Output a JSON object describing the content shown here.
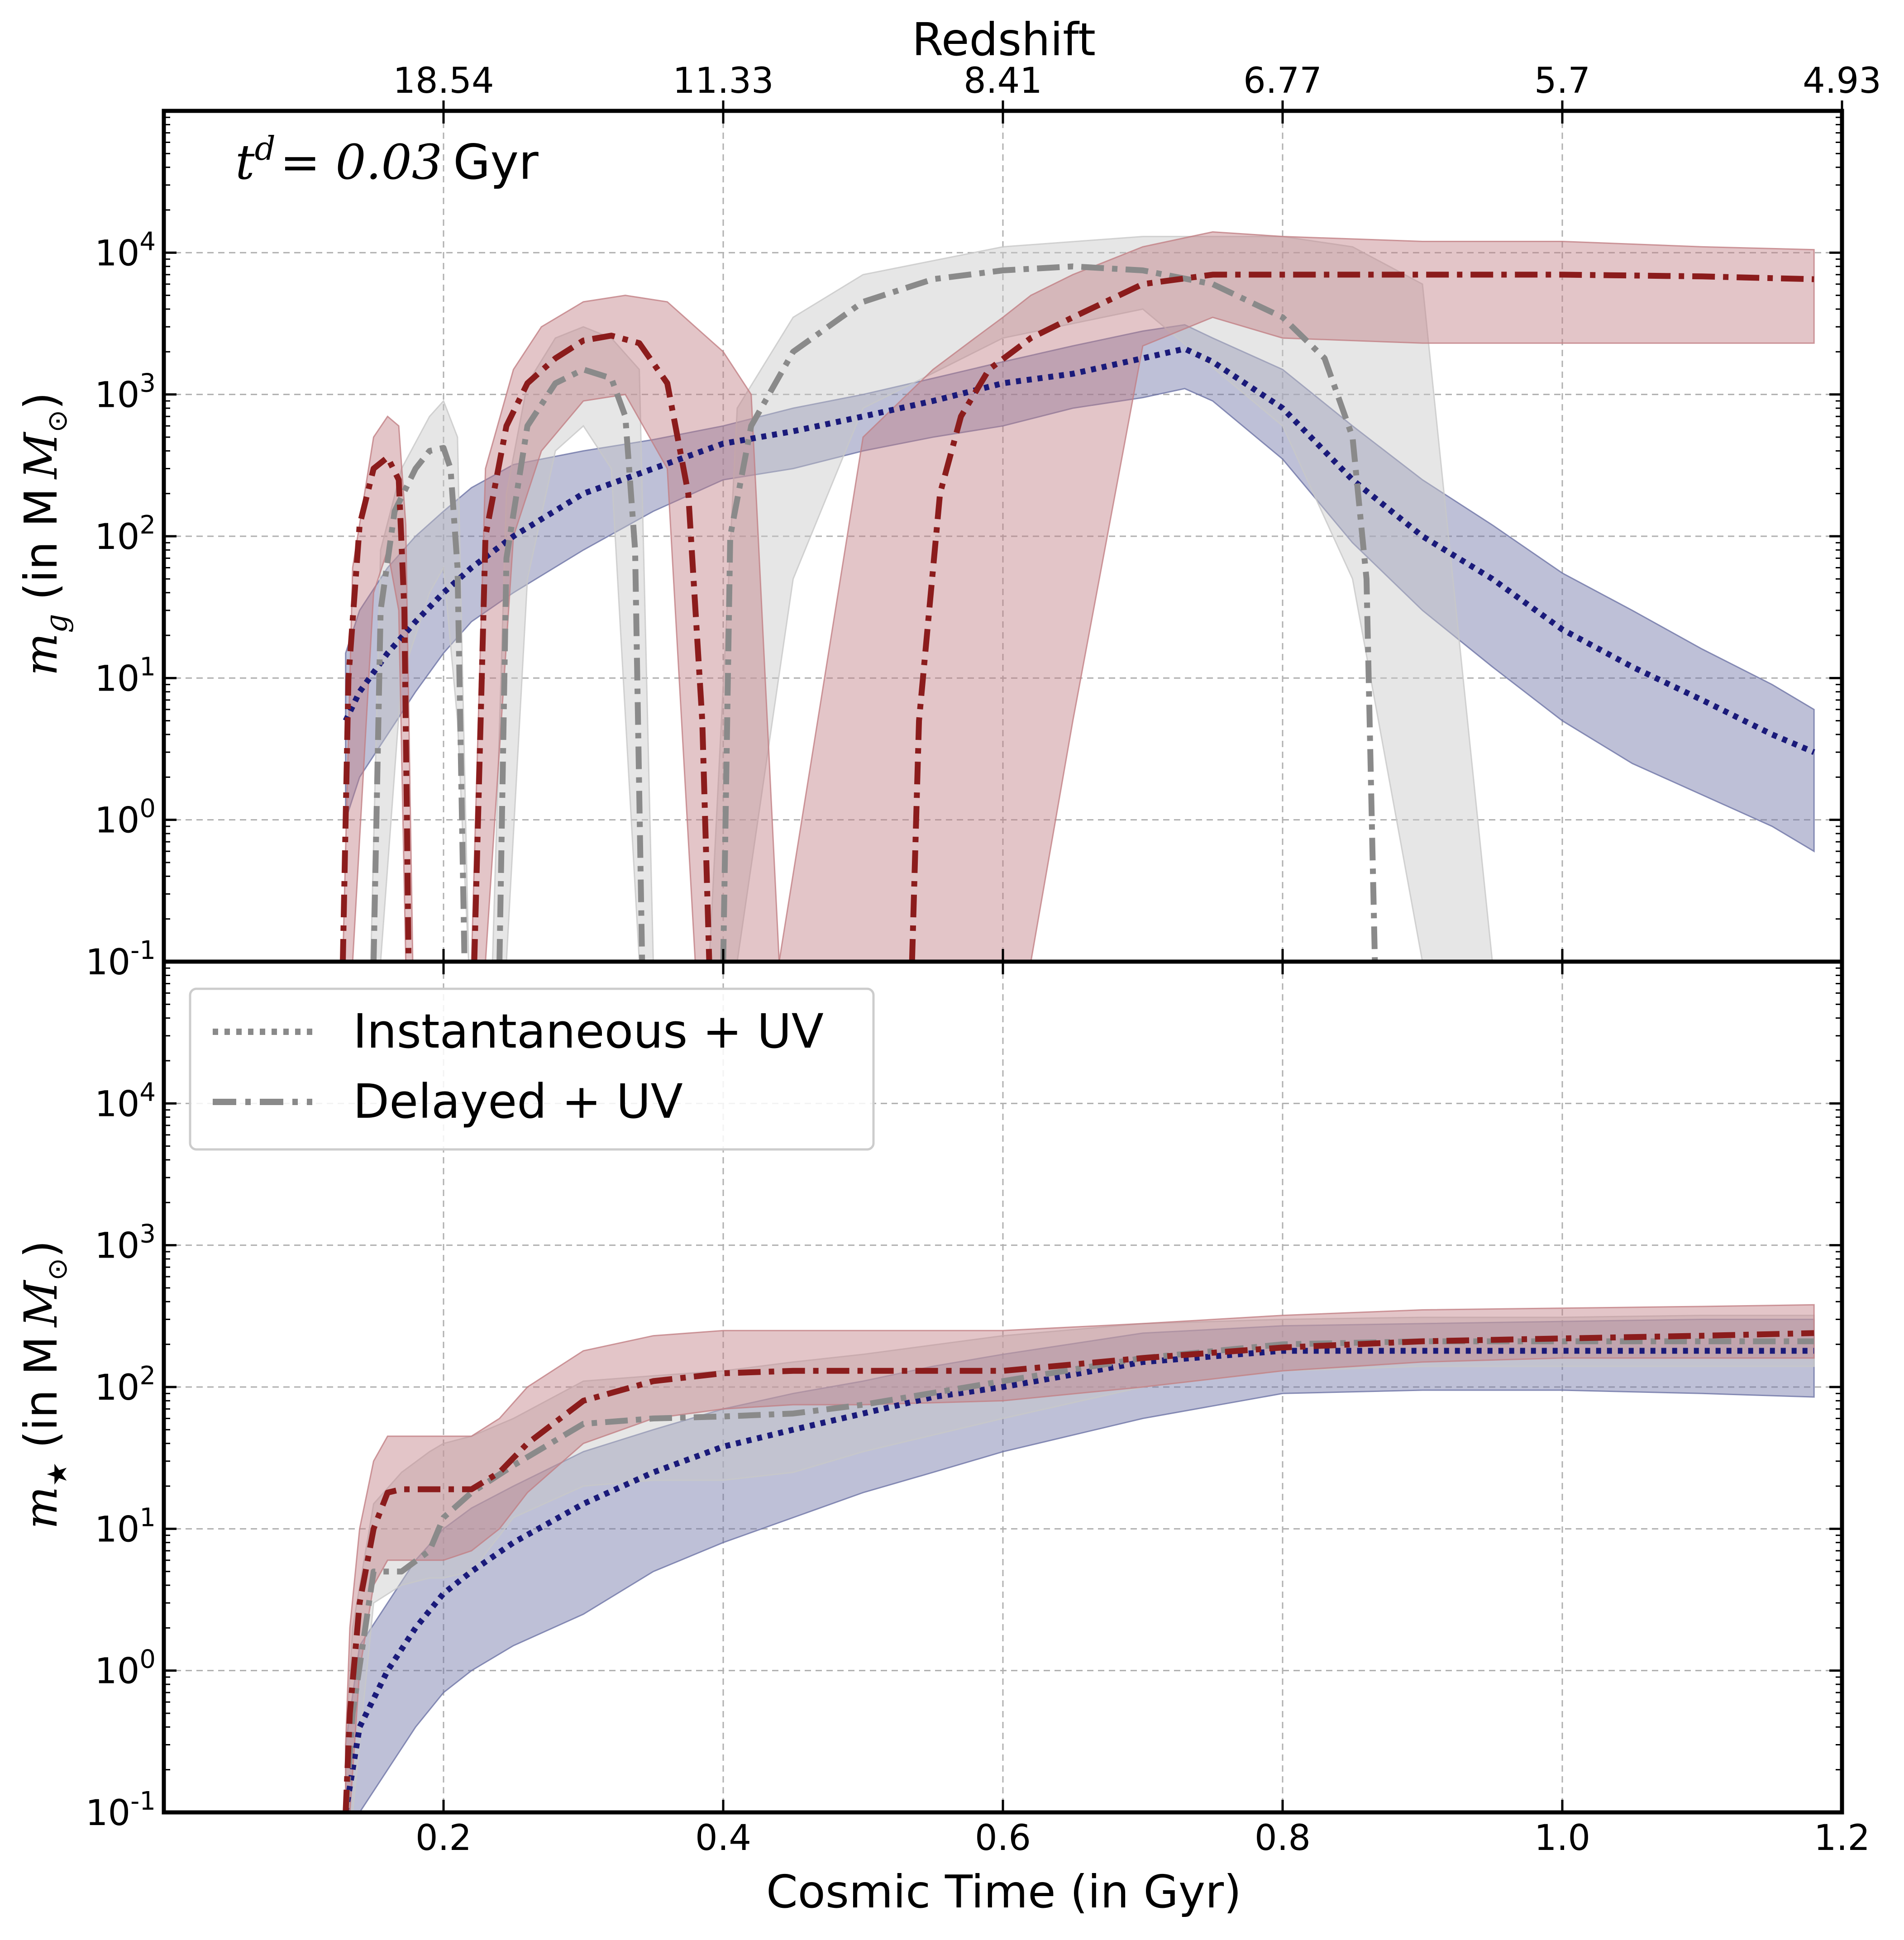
{
  "colors": {
    "instantaneous": "#1a1a7a",
    "instantaneous_band": "#6e74a6",
    "delayed": "#8a8a8a",
    "delayed_band": "#c8c8c8",
    "delayed_nouv": "#8b1c1c",
    "delayed_nouv_band": "#c27f85",
    "grid": "#b0b0b0"
  },
  "top_axis": {
    "title": "Redshift",
    "tick_labels": [
      "18.54",
      "11.33",
      "8.41",
      "6.77",
      "5.7",
      "4.93"
    ],
    "tick_positions_gyr": [
      0.2,
      0.4,
      0.6,
      0.8,
      1.0,
      1.2
    ]
  },
  "x_axis": {
    "title": "Cosmic Time (in Gyr)",
    "ticks": [
      0.2,
      0.4,
      0.6,
      0.8,
      1.0,
      1.2
    ],
    "tick_labels": [
      "0.2",
      "0.4",
      "0.6",
      "0.8",
      "1.0",
      "1.2"
    ]
  },
  "annotation": {
    "math": "t",
    "superscript": "d",
    "value": "= 0.03",
    "unit": "Gyr"
  },
  "legend": {
    "placement": "upper-left of lower panel",
    "entries": [
      {
        "label": "Instantaneous + UV",
        "style": "dotted"
      },
      {
        "label": "Delayed + UV",
        "style": "dashdot"
      }
    ]
  },
  "chart_data": [
    {
      "type": "line",
      "panel": "top",
      "ylabel_math": "m",
      "ylabel_sub": "g",
      "ylabel_text": "(in M",
      "ylabel_sun": "⊙",
      "ylabel_close": ")",
      "xlim": [
        0.0,
        1.2
      ],
      "ylim_log10": [
        -1,
        5
      ],
      "yscale": "log",
      "grid": true,
      "ytick_exponents": [
        -1,
        0,
        1,
        2,
        3,
        4
      ],
      "ytick_base": "10",
      "series": [
        {
          "name": "Instantaneous + UV",
          "key": "instantaneous",
          "style": "dotted",
          "x": [
            0.13,
            0.14,
            0.16,
            0.18,
            0.2,
            0.22,
            0.25,
            0.3,
            0.35,
            0.4,
            0.45,
            0.5,
            0.55,
            0.6,
            0.65,
            0.7,
            0.73,
            0.75,
            0.8,
            0.85,
            0.9,
            0.95,
            1.0,
            1.05,
            1.1,
            1.15,
            1.18
          ],
          "y": [
            5,
            8,
            15,
            25,
            40,
            60,
            100,
            200,
            300,
            450,
            550,
            700,
            900,
            1200,
            1400,
            1800,
            2100,
            1700,
            800,
            250,
            100,
            50,
            22,
            12,
            7,
            4,
            3
          ],
          "band_upper": [
            15,
            30,
            60,
            100,
            150,
            220,
            320,
            400,
            480,
            600,
            800,
            1000,
            1300,
            1700,
            2200,
            2800,
            3100,
            2500,
            1500,
            600,
            250,
            120,
            55,
            30,
            16,
            9,
            6
          ],
          "band_lower": [
            1,
            2,
            4,
            8,
            15,
            25,
            40,
            80,
            150,
            250,
            300,
            400,
            500,
            600,
            800,
            950,
            1100,
            900,
            350,
            90,
            30,
            12,
            5,
            2.5,
            1.5,
            0.9,
            0.6
          ]
        },
        {
          "name": "Delayed + UV",
          "key": "delayed",
          "style": "dashdot",
          "segments": [
            {
              "x": [
                0.15,
                0.155,
                0.165,
                0.18,
                0.19,
                0.2,
                0.205,
                0.21,
                0.215
              ],
              "y": [
                0.1,
                30,
                150,
                300,
                400,
                420,
                300,
                60,
                0.1
              ]
            },
            {
              "x": [
                0.24,
                0.245,
                0.26,
                0.28,
                0.3,
                0.32,
                0.33,
                0.337,
                0.342
              ],
              "y": [
                0.1,
                70,
                600,
                1200,
                1500,
                1300,
                700,
                80,
                0.1
              ]
            },
            {
              "x": [
                0.4,
                0.405,
                0.42,
                0.45,
                0.5,
                0.55,
                0.6,
                0.65,
                0.7,
                0.75,
                0.8,
                0.83,
                0.85,
                0.86,
                0.866
              ],
              "y": [
                0.1,
                100,
                600,
                2000,
                4500,
                6500,
                7500,
                8000,
                7500,
                6000,
                3500,
                1800,
                500,
                50,
                0.1
              ]
            }
          ],
          "bands": [
            {
              "x": [
                0.148,
                0.155,
                0.17,
                0.19,
                0.2,
                0.21,
                0.218
              ],
              "upper": [
                0.1,
                80,
                300,
                700,
                900,
                500,
                0.1
              ],
              "lower": [
                0.1,
                0.1,
                10,
                40,
                60,
                5,
                0.1
              ]
            },
            {
              "x": [
                0.235,
                0.245,
                0.26,
                0.28,
                0.3,
                0.32,
                0.34,
                0.35
              ],
              "upper": [
                0.1,
                200,
                1200,
                2500,
                3000,
                2500,
                1500,
                0.1
              ],
              "lower": [
                0.1,
                0.1,
                50,
                400,
                600,
                300,
                0.1,
                0.1
              ]
            },
            {
              "x": [
                0.39,
                0.41,
                0.45,
                0.5,
                0.6,
                0.7,
                0.8,
                0.85,
                0.9,
                0.95
              ],
              "upper": [
                0.1,
                800,
                3500,
                7000,
                11000,
                13000,
                13000,
                11000,
                6000,
                0.1
              ],
              "lower": [
                0.1,
                0.1,
                50,
                800,
                2500,
                4000,
                600,
                50,
                0.1,
                0.1
              ]
            }
          ]
        },
        {
          "name": "",
          "key": "delayed_nouv",
          "style": "dashdot",
          "segments": [
            {
              "x": [
                0.128,
                0.132,
                0.14,
                0.15,
                0.16,
                0.168,
                0.172,
                0.175
              ],
              "y": [
                0.1,
                10,
                120,
                300,
                360,
                250,
                30,
                0.1
              ]
            },
            {
              "x": [
                0.222,
                0.23,
                0.245,
                0.26,
                0.28,
                0.3,
                0.32,
                0.34,
                0.36,
                0.375,
                0.385,
                0.39
              ],
              "y": [
                0.1,
                100,
                600,
                1200,
                1800,
                2400,
                2600,
                2300,
                1200,
                200,
                5,
                0.1
              ]
            },
            {
              "x": [
                0.535,
                0.54,
                0.555,
                0.57,
                0.59,
                0.62,
                0.65,
                0.7,
                0.75,
                0.8,
                0.9,
                1.0,
                1.1,
                1.18
              ],
              "y": [
                0.1,
                5,
                200,
                700,
                1500,
                2500,
                3500,
                6000,
                7000,
                7000,
                7000,
                7000,
                6800,
                6500
              ]
            }
          ],
          "bands": [
            {
              "x": [
                0.128,
                0.135,
                0.15,
                0.16,
                0.168,
                0.173,
                0.178
              ],
              "upper": [
                0.1,
                60,
                500,
                700,
                600,
                120,
                0.1
              ],
              "lower": [
                0.1,
                0.1,
                40,
                80,
                30,
                0.1,
                0.1
              ]
            },
            {
              "x": [
                0.22,
                0.23,
                0.25,
                0.27,
                0.3,
                0.33,
                0.36,
                0.38,
                0.4,
                0.42,
                0.44
              ],
              "upper": [
                0.1,
                300,
                1500,
                3000,
                4500,
                5000,
                4500,
                3000,
                2000,
                1000,
                0.1
              ],
              "lower": [
                0.1,
                0.1,
                100,
                400,
                900,
                1000,
                300,
                0.1,
                0.1,
                0.1,
                0.1
              ]
            },
            {
              "x": [
                0.44,
                0.5,
                0.55,
                0.58,
                0.6,
                0.62,
                0.65,
                0.7,
                0.75,
                0.8,
                0.9,
                1.0,
                1.1,
                1.18
              ],
              "upper": [
                0.1,
                500,
                1500,
                2500,
                3500,
                5000,
                7000,
                11000,
                14000,
                13000,
                12000,
                12000,
                11000,
                10500
              ],
              "lower": [
                0.1,
                0.1,
                0.1,
                0.1,
                0.1,
                0.1,
                5,
                2200,
                3500,
                2500,
                2300,
                2300,
                2300,
                2300
              ]
            }
          ]
        }
      ]
    },
    {
      "type": "line",
      "panel": "bottom",
      "ylabel_math": "m",
      "ylabel_sub": "★",
      "ylabel_text": "(in M",
      "ylabel_sun": "⊙",
      "ylabel_close": ")",
      "xlim": [
        0.0,
        1.2
      ],
      "ylim_log10": [
        -1,
        5
      ],
      "yscale": "log",
      "grid": true,
      "ytick_exponents": [
        -1,
        0,
        1,
        2,
        3,
        4
      ],
      "ytick_base": "10",
      "series": [
        {
          "name": "Instantaneous + UV",
          "key": "instantaneous",
          "style": "dotted",
          "x": [
            0.13,
            0.14,
            0.16,
            0.18,
            0.2,
            0.22,
            0.25,
            0.3,
            0.35,
            0.4,
            0.45,
            0.5,
            0.55,
            0.6,
            0.7,
            0.8,
            0.9,
            1.0,
            1.1,
            1.18
          ],
          "y": [
            0.1,
            0.4,
            1,
            2,
            3.5,
            5,
            8,
            15,
            25,
            38,
            50,
            65,
            85,
            100,
            150,
            180,
            180,
            180,
            180,
            180
          ],
          "band_upper": [
            0.3,
            1.5,
            3,
            6,
            10,
            14,
            20,
            35,
            50,
            70,
            90,
            110,
            140,
            170,
            240,
            270,
            280,
            290,
            300,
            300
          ],
          "band_lower": [
            0.05,
            0.08,
            0.2,
            0.4,
            0.7,
            1,
            1.5,
            2.5,
            5,
            8,
            12,
            18,
            25,
            35,
            60,
            90,
            95,
            95,
            90,
            85
          ]
        },
        {
          "name": "Delayed + UV",
          "key": "delayed",
          "style": "dashdot",
          "x": [
            0.13,
            0.135,
            0.15,
            0.17,
            0.19,
            0.2,
            0.22,
            0.25,
            0.3,
            0.35,
            0.4,
            0.45,
            0.5,
            0.6,
            0.7,
            0.8,
            0.9,
            1.0,
            1.1,
            1.18
          ],
          "y": [
            0.1,
            0.5,
            5,
            5,
            7,
            12,
            18,
            28,
            55,
            60,
            62,
            65,
            75,
            110,
            160,
            200,
            210,
            210,
            210,
            210
          ],
          "band_upper": [
            0.3,
            2,
            15,
            25,
            35,
            40,
            45,
            60,
            110,
            120,
            130,
            150,
            170,
            230,
            280,
            300,
            310,
            310,
            320,
            320
          ],
          "band_lower": [
            0.05,
            0.1,
            3,
            4,
            4.5,
            4.5,
            5,
            12,
            20,
            22,
            22,
            25,
            35,
            60,
            100,
            130,
            140,
            140,
            140,
            140
          ]
        },
        {
          "name": "",
          "key": "delayed_nouv",
          "style": "dashdot",
          "x": [
            0.13,
            0.133,
            0.14,
            0.15,
            0.16,
            0.17,
            0.18,
            0.2,
            0.22,
            0.24,
            0.26,
            0.3,
            0.35,
            0.4,
            0.45,
            0.5,
            0.6,
            0.7,
            0.8,
            0.9,
            1.0,
            1.1,
            1.18
          ],
          "y": [
            0.1,
            0.5,
            3,
            10,
            18,
            19,
            19,
            19,
            19,
            25,
            40,
            80,
            110,
            125,
            130,
            130,
            130,
            160,
            190,
            210,
            220,
            230,
            240
          ],
          "band_upper": [
            0.3,
            2,
            10,
            30,
            45,
            45,
            45,
            45,
            45,
            60,
            100,
            180,
            230,
            250,
            250,
            250,
            250,
            280,
            320,
            350,
            360,
            370,
            380
          ],
          "band_lower": [
            0.05,
            0.1,
            1,
            4,
            6,
            6,
            6,
            6,
            7,
            10,
            18,
            40,
            60,
            70,
            75,
            75,
            80,
            100,
            130,
            150,
            160,
            160,
            160
          ]
        }
      ]
    }
  ]
}
